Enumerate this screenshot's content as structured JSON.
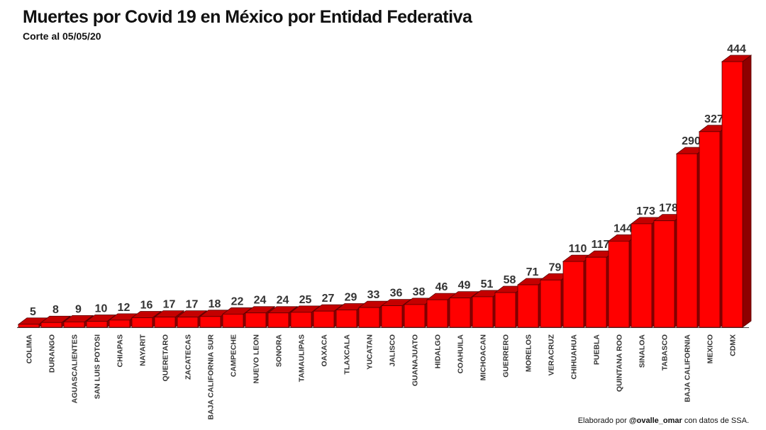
{
  "header": {
    "title": "Muertes por Covid 19 en México por Entidad Federativa",
    "subtitle": "Corte al 05/05/20"
  },
  "footer": {
    "credit_prefix": "Elaborado por ",
    "credit_author": "@ovalle_omar",
    "credit_suffix": " con datos de SSA."
  },
  "colors": {
    "bar_front": "#ff0000",
    "bar_top": "#c40000",
    "bar_side": "#8e0000",
    "bar_edge": "#5a0000",
    "label": "#333333",
    "axis": "#444444"
  },
  "chart_data": {
    "type": "bar",
    "style": "3d",
    "title": "Muertes por Covid 19 en México por Entidad Federativa",
    "subtitle": "Corte al 05/05/20",
    "xlabel": "",
    "ylabel": "",
    "ylim": [
      0,
      444
    ],
    "grid": false,
    "legend": "none",
    "categories": [
      "COLIMA",
      "DURANGO",
      "AGUASCALIENTES",
      "SAN LUIS POTOSI",
      "CHIAPAS",
      "NAYARIT",
      "QUERETARO",
      "ZACATECAS",
      "BAJA CALIFORNIA SUR",
      "CAMPECHE",
      "NUEVO LEON",
      "SONORA",
      "TAMAULIPAS",
      "OAXACA",
      "TLAXCALA",
      "YUCATAN",
      "JALISCO",
      "GUANAJUATO",
      "HIDALGO",
      "COAHUILA",
      "MICHOACAN",
      "GUERRERO",
      "MORELOS",
      "VERACRUZ",
      "CHIHUAHUA",
      "PUEBLA",
      "QUINTANA ROO",
      "SINALOA",
      "TABASCO",
      "BAJA CALIFORNIA",
      "MEXICO",
      "CDMX"
    ],
    "values": [
      5,
      8,
      9,
      10,
      12,
      16,
      17,
      17,
      18,
      22,
      24,
      24,
      25,
      27,
      29,
      33,
      36,
      38,
      46,
      49,
      51,
      58,
      71,
      79,
      110,
      117,
      144,
      173,
      178,
      290,
      327,
      444
    ]
  }
}
